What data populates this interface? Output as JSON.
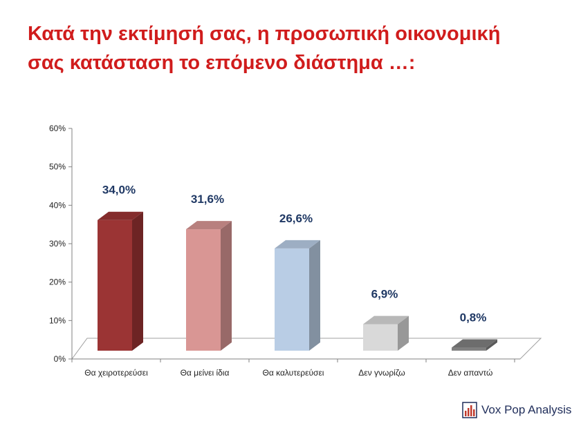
{
  "title": {
    "line1": "Κατά την εκτίμησή σας, η προσωπική οικονομική",
    "line2": "σας κατάσταση το επόμενο διάστημα …:"
  },
  "brand": {
    "text": "Vox Pop Analysis",
    "icon": "bar-chart-logo-icon"
  },
  "chart_data": {
    "type": "bar",
    "categories": [
      "Θα χειροτερεύσει",
      "Θα μείνει ίδια",
      "Θα καλυτερεύσει",
      "Δεν γνωρίζω",
      "Δεν απαντώ"
    ],
    "values": [
      34.0,
      31.6,
      26.6,
      6.9,
      0.8
    ],
    "data_labels": [
      "34,0%",
      "31,6%",
      "26,6%",
      "6,9%",
      "0,8%"
    ],
    "y_ticks": [
      "0%",
      "10%",
      "20%",
      "30%",
      "40%",
      "50%",
      "60%"
    ],
    "ylim": [
      0,
      60
    ],
    "colors": [
      "#9b3434",
      "#d99694",
      "#b9cde5",
      "#d9d9d9",
      "#808080"
    ],
    "label_color": "#1f3864",
    "grid": false,
    "style": "3d-bars"
  }
}
